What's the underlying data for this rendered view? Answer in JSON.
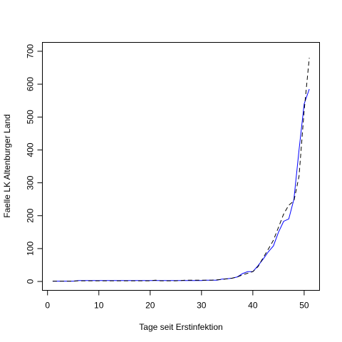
{
  "chart_data": {
    "type": "line",
    "title": "",
    "xlabel": "Tage seit Erstinfektion",
    "ylabel": "Faelle LK Altenburger Land",
    "xlim": [
      -1,
      53
    ],
    "ylim": [
      -27,
      727
    ],
    "xticks": [
      0,
      10,
      20,
      30,
      40,
      50
    ],
    "yticks": [
      0,
      100,
      200,
      300,
      400,
      500,
      600,
      700
    ],
    "grid": false,
    "legend": "none",
    "series": [
      {
        "style": "solid",
        "color": "#0000ff",
        "x": [
          1,
          2,
          3,
          4,
          5,
          6,
          7,
          8,
          9,
          10,
          11,
          12,
          13,
          14,
          15,
          16,
          17,
          18,
          19,
          20,
          21,
          22,
          23,
          24,
          25,
          26,
          27,
          28,
          29,
          30,
          31,
          32,
          33,
          34,
          35,
          36,
          37,
          38,
          39,
          40,
          41,
          42,
          43,
          44,
          45,
          46,
          47,
          48,
          49,
          50,
          51
        ],
        "y": [
          1,
          1,
          1,
          1,
          1,
          3,
          3,
          3,
          3,
          3,
          3,
          3,
          3,
          3,
          3,
          3,
          3,
          3,
          3,
          3,
          3,
          3,
          3,
          3,
          3,
          3,
          3,
          3,
          3,
          3,
          4,
          4,
          4,
          7,
          8,
          10,
          14,
          24,
          30,
          30,
          48,
          68,
          90,
          108,
          150,
          183,
          190,
          250,
          400,
          540,
          585
        ]
      },
      {
        "style": "dashed",
        "color": "#000000",
        "x": [
          1,
          2,
          3,
          4,
          5,
          6,
          7,
          8,
          9,
          10,
          11,
          12,
          13,
          14,
          15,
          16,
          17,
          18,
          19,
          20,
          21,
          22,
          23,
          24,
          25,
          26,
          27,
          28,
          29,
          30,
          31,
          32,
          33,
          34,
          35,
          36,
          37,
          38,
          39,
          40,
          41,
          42,
          43,
          44,
          45,
          46,
          47,
          48,
          49,
          50,
          51
        ],
        "y": [
          1,
          1,
          1,
          1,
          1,
          2,
          2,
          2,
          2,
          2,
          2,
          2,
          2,
          2,
          2,
          2,
          2,
          2,
          2,
          2,
          4,
          2,
          2,
          2,
          2,
          3,
          4,
          4,
          4,
          4,
          4,
          4,
          5,
          6,
          8,
          10,
          14,
          20,
          25,
          30,
          45,
          72,
          98,
          125,
          165,
          205,
          232,
          245,
          320,
          520,
          680
        ]
      }
    ]
  }
}
